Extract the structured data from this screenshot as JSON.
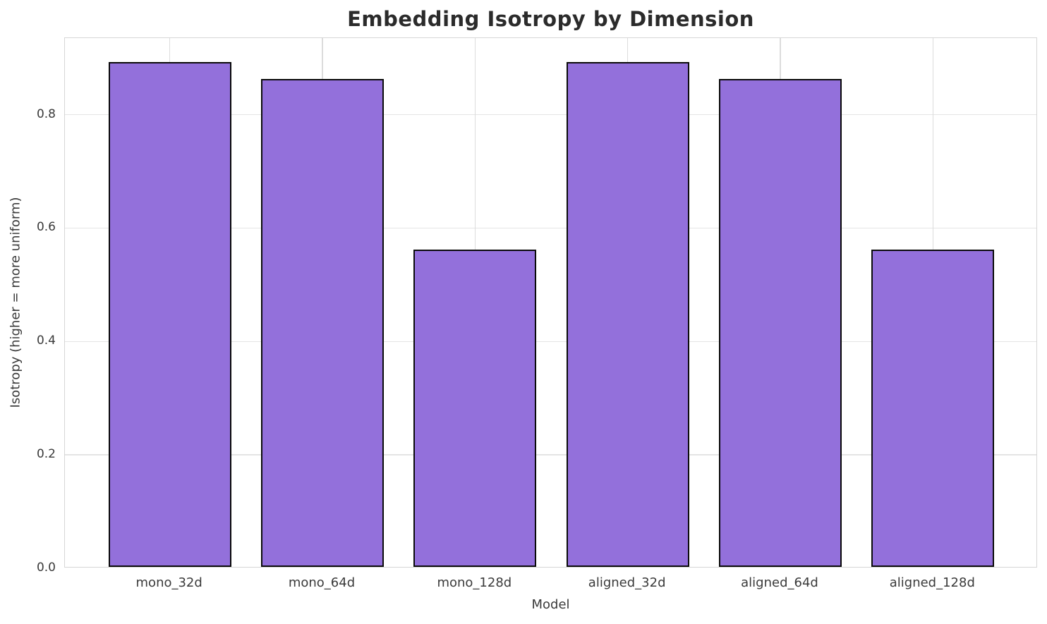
{
  "chart_data": {
    "type": "bar",
    "title": "Embedding Isotropy by Dimension",
    "xlabel": "Model",
    "ylabel": "Isotropy (higher = more uniform)",
    "categories": [
      "mono_32d",
      "mono_64d",
      "mono_128d",
      "aligned_32d",
      "aligned_64d",
      "aligned_128d"
    ],
    "values": [
      0.89,
      0.86,
      0.56,
      0.89,
      0.86,
      0.56
    ],
    "ytick_labels": [
      "0.0",
      "0.2",
      "0.4",
      "0.6",
      "0.8"
    ],
    "yticks": [
      0.0,
      0.2,
      0.4,
      0.6,
      0.8
    ],
    "ylim": [
      0,
      0.935
    ],
    "grid": true,
    "legend": "none",
    "bar_color": "#9370DB",
    "bar_edge_color": "#0a0a0a",
    "gridline_color": "#e4e4e4",
    "text_color": "#3a3a3a",
    "title_color": "#2b2b2b"
  }
}
